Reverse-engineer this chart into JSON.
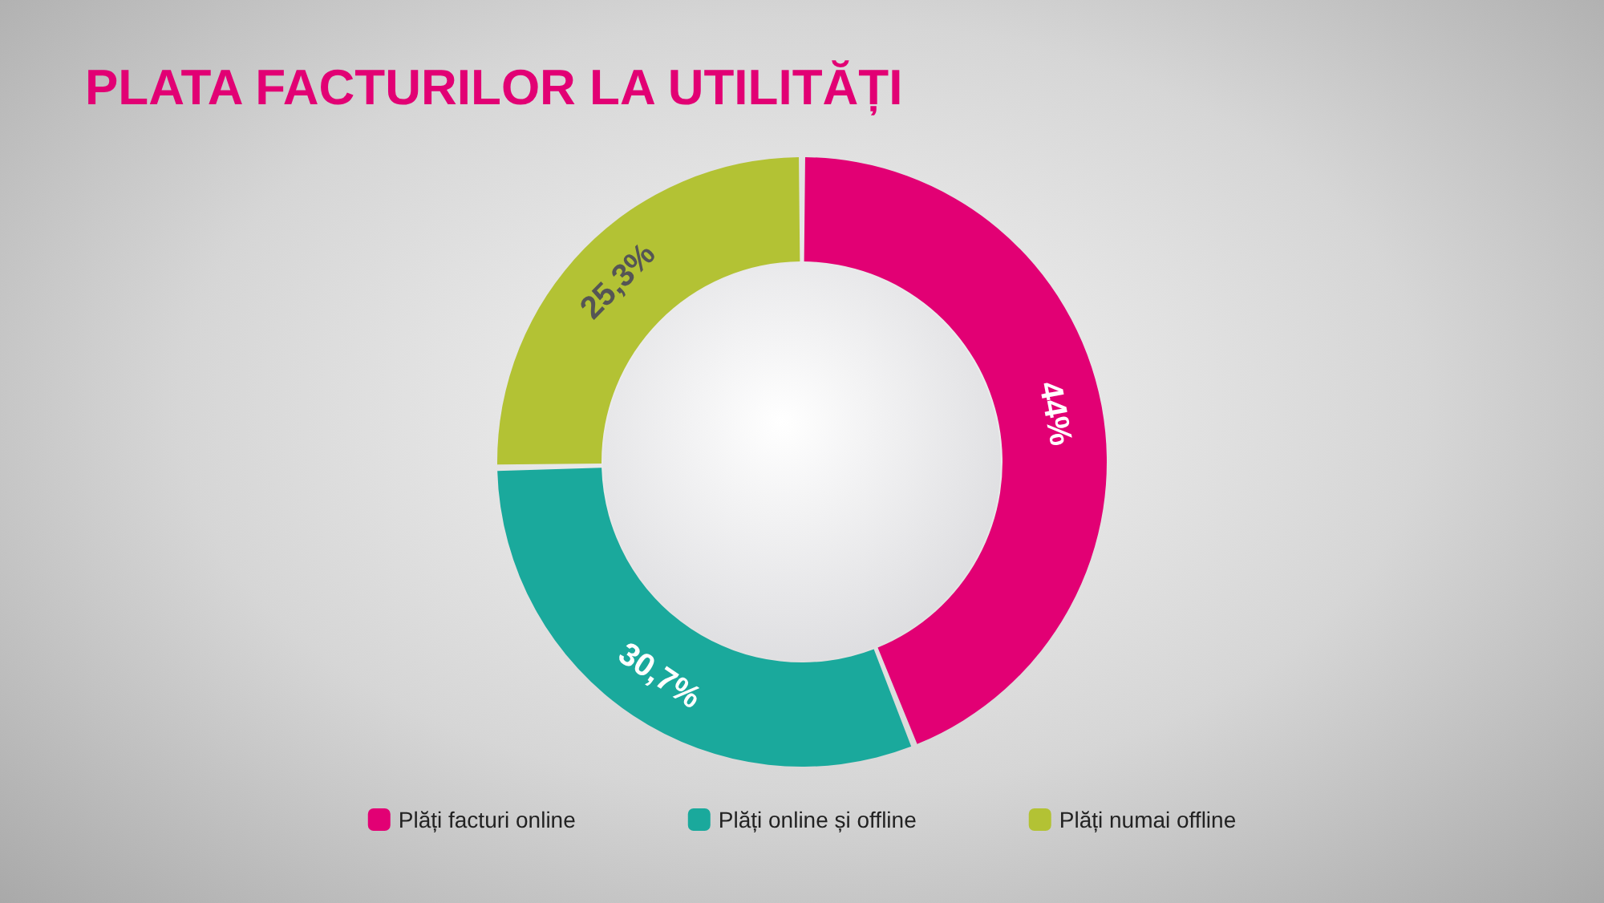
{
  "chart_data": {
    "type": "donut",
    "title": "PLATA FACTURILOR LA UTILITĂȚI",
    "categories": [
      "Plăți facturi online",
      "Plăți online și offline",
      "Plăți numai offline"
    ],
    "values": [
      44,
      30.7,
      25.3
    ],
    "value_labels": [
      "44%",
      "30,7%",
      "25,3%"
    ],
    "colors": [
      "#e20074",
      "#1aa99c",
      "#b3c234"
    ],
    "legend": "bottom"
  }
}
